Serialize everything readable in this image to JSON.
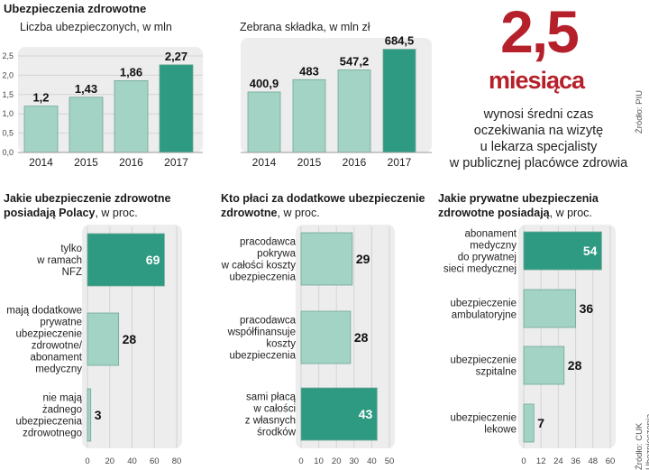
{
  "main_title": "Ubezpieczenia zdrowotne",
  "highlight": {
    "value": "2,5",
    "unit": "miesiąca",
    "description": [
      "wynosi średni czas",
      "oczekiwania na wizytę",
      "u lekarza specjalisty",
      "w publicznej placówce zdrowia"
    ]
  },
  "sources": {
    "top": "Źródło: PIU",
    "bottom": "Źródło: CUK Ubezpieczenia"
  },
  "colors": {
    "light_bar": "#a3d3c4",
    "dark_bar": "#2e9a82",
    "panel_bg": "#ededed",
    "accent_red": "#b5202a"
  },
  "chart_data": [
    {
      "type": "bar",
      "title": "Liczba ubezpieczonych, w mln",
      "categories": [
        "2014",
        "2015",
        "2016",
        "2017"
      ],
      "values": [
        1.2,
        1.43,
        1.86,
        2.27
      ],
      "value_labels": [
        "1,2",
        "1,43",
        "1,86",
        "2,27"
      ],
      "ylim": [
        0,
        2.5
      ],
      "yticks": [
        "0,0",
        "0,5",
        "1,0",
        "1,5",
        "2,0",
        "2,5"
      ],
      "highlight_index": 3
    },
    {
      "type": "bar",
      "title": "Zebrana składka, w mln zł",
      "categories": [
        "2014",
        "2015",
        "2016",
        "2017"
      ],
      "values": [
        400.9,
        483,
        547.2,
        684.5
      ],
      "value_labels": [
        "400,9",
        "483",
        "547,2",
        "684,5"
      ],
      "ymax": 700,
      "highlight_index": 3
    },
    {
      "type": "bar",
      "orientation": "horizontal",
      "title_bold": "Jakie ubezpieczenie zdrowotne posiadają Polacy",
      "title_normal": ", w proc.",
      "categories": [
        "tylko w ramach NFZ",
        "mają dodatkowe prywatne ubezpieczenie zdrowotne/ abonament medyczny",
        "nie mają żadnego ubezpieczenia zdrowotnego"
      ],
      "category_lines": [
        [
          "tylko",
          "w ramach",
          "NFZ"
        ],
        [
          "mają dodatkowe",
          "prywatne",
          "ubezpieczenie",
          "zdrowotne/",
          "abonament",
          "medyczny"
        ],
        [
          "nie mają",
          "żadnego",
          "ubezpieczenia",
          "zdrowotnego"
        ]
      ],
      "values": [
        69,
        28,
        3
      ],
      "xlim": [
        0,
        80
      ],
      "xticks": [
        0,
        20,
        40,
        60,
        80
      ],
      "highlight_index": 0
    },
    {
      "type": "bar",
      "orientation": "horizontal",
      "title_bold": "Kto płaci za dodatkowe ubezpieczenie zdrowotne",
      "title_normal": ", w proc.",
      "categories": [
        "pracodawca pokrywa w całości koszty ubezpieczenia",
        "pracodawca współfinansuje koszty ubezpieczenia",
        "sami płacą w całości z własnych środków"
      ],
      "category_lines": [
        [
          "pracodawca",
          "pokrywa",
          "w całości koszty",
          "ubezpieczenia"
        ],
        [
          "pracodawca",
          "współfinansuje",
          "koszty",
          "ubezpieczenia"
        ],
        [
          "sami płacą",
          "w całości",
          "z własnych",
          "środków"
        ]
      ],
      "values": [
        29,
        28,
        43
      ],
      "xlim": [
        0,
        50
      ],
      "xticks": [
        0,
        10,
        20,
        30,
        40,
        50
      ],
      "highlight_index": 2
    },
    {
      "type": "bar",
      "orientation": "horizontal",
      "title_bold": "Jakie prywatne ubezpieczenia zdrowotne posiadają",
      "title_normal": ", w proc.",
      "categories": [
        "abonament medyczny do prywatnej sieci medycznej",
        "ubezpieczenie ambulatoryjne",
        "ubezpieczenie szpitalne",
        "ubezpieczenie lekowe"
      ],
      "category_lines": [
        [
          "abonament",
          "medyczny",
          "do prywatnej",
          "sieci medycznej"
        ],
        [
          "ubezpieczenie",
          "ambulatoryjne"
        ],
        [
          "ubezpieczenie",
          "szpitalne"
        ],
        [
          "ubezpieczenie",
          "lekowe"
        ]
      ],
      "values": [
        54,
        36,
        28,
        7
      ],
      "xlim": [
        0,
        60
      ],
      "xticks": [
        0,
        12,
        24,
        36,
        48,
        60
      ],
      "highlight_index": 0
    }
  ]
}
